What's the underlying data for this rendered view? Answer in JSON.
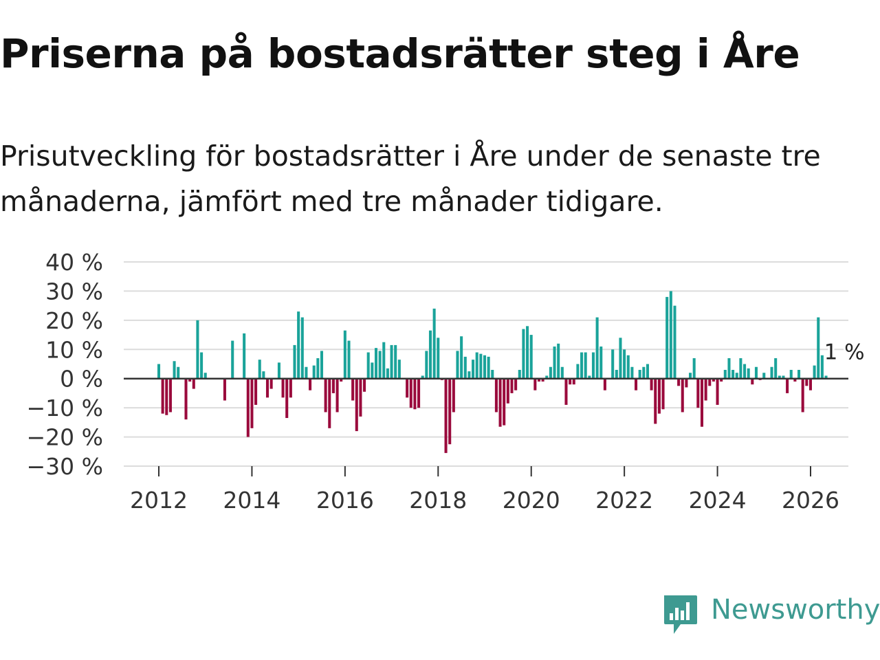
{
  "header": {
    "title": "Priserna på bostadsrätter steg i Åre",
    "subtitle": "Prisutveckling för bostadsrätter i Åre under de senaste tre månaderna, jämfört med tre månader tidigare."
  },
  "brand": {
    "name": "Newsworthy",
    "icon": "newsworthy-logo-icon"
  },
  "colors": {
    "positive": "#1aa39a",
    "negative": "#9a0a3c",
    "grid": "#dcdcdc",
    "zero_line": "#333333",
    "axis_text": "#333333",
    "brand": "#3e9a91"
  },
  "chart_data": {
    "type": "bar",
    "title": "Priserna på bostadsrätter steg i Åre",
    "xlabel": "",
    "ylabel": "",
    "ylim": [
      -30,
      40
    ],
    "yticks": [
      40,
      30,
      20,
      10,
      0,
      -10,
      -20,
      -30
    ],
    "ytick_labels": [
      "40 %",
      "30 %",
      "20 %",
      "10 %",
      "0 %",
      "−10 %",
      "−20 %",
      "−30 %"
    ],
    "xticks": [
      2012,
      2014,
      2016,
      2018,
      2020,
      2022,
      2024,
      2026
    ],
    "xtick_labels": [
      "2012",
      "2014",
      "2016",
      "2018",
      "2020",
      "2022",
      "2024",
      "2026"
    ],
    "start": 2012.0,
    "step": 0.08333,
    "values": [
      5,
      -12,
      -12.5,
      -11.5,
      6,
      4,
      0,
      -14,
      -1,
      -3.5,
      20,
      9,
      2,
      0,
      0,
      0,
      0,
      -7.5,
      0,
      13,
      0,
      0,
      15.5,
      -20,
      -17,
      -9,
      6.5,
      2.5,
      -6.5,
      -3.5,
      0,
      5.5,
      -6.5,
      -13.5,
      -6.5,
      11.5,
      23,
      21,
      4,
      -4,
      4.5,
      7,
      9.5,
      -11.5,
      -17,
      -5,
      -11.5,
      -1,
      16.5,
      13,
      -7.5,
      -18,
      -13,
      -4.5,
      9,
      5.5,
      10.5,
      9.5,
      12.5,
      3.5,
      11.5,
      11.5,
      6.5,
      0,
      -6.5,
      -10,
      -10.5,
      -10,
      1,
      9.5,
      16.5,
      24,
      14,
      -0.5,
      -25.5,
      -22.5,
      -11.5,
      9.5,
      14.5,
      7.5,
      2.5,
      6.5,
      9,
      8.5,
      8,
      7.5,
      3,
      -11.5,
      -16.5,
      -16,
      -8.5,
      -5,
      -4,
      3,
      17,
      18,
      15,
      -4,
      -1,
      -1,
      1,
      4,
      11,
      12,
      4,
      -9,
      -2,
      -2,
      5,
      9,
      9,
      1,
      9,
      21,
      11,
      -4,
      0,
      10,
      3,
      14,
      10,
      8,
      4,
      -4,
      3,
      4,
      5,
      -4,
      -15.5,
      -12,
      -10.5,
      28,
      30,
      25,
      -2.5,
      -11.5,
      -3,
      2,
      7,
      -10,
      -16.5,
      -7.5,
      -2.5,
      -1,
      -9,
      -1,
      3,
      7,
      3,
      2,
      7,
      5,
      3.5,
      -2,
      4,
      -0.5,
      2,
      0,
      4,
      7,
      1,
      1,
      -5,
      3,
      -1,
      3,
      -11.5,
      -2.5,
      -4,
      4.5,
      21,
      8,
      1
    ],
    "annotation": {
      "text": "1 %",
      "x_index": 176,
      "value": 1
    }
  }
}
